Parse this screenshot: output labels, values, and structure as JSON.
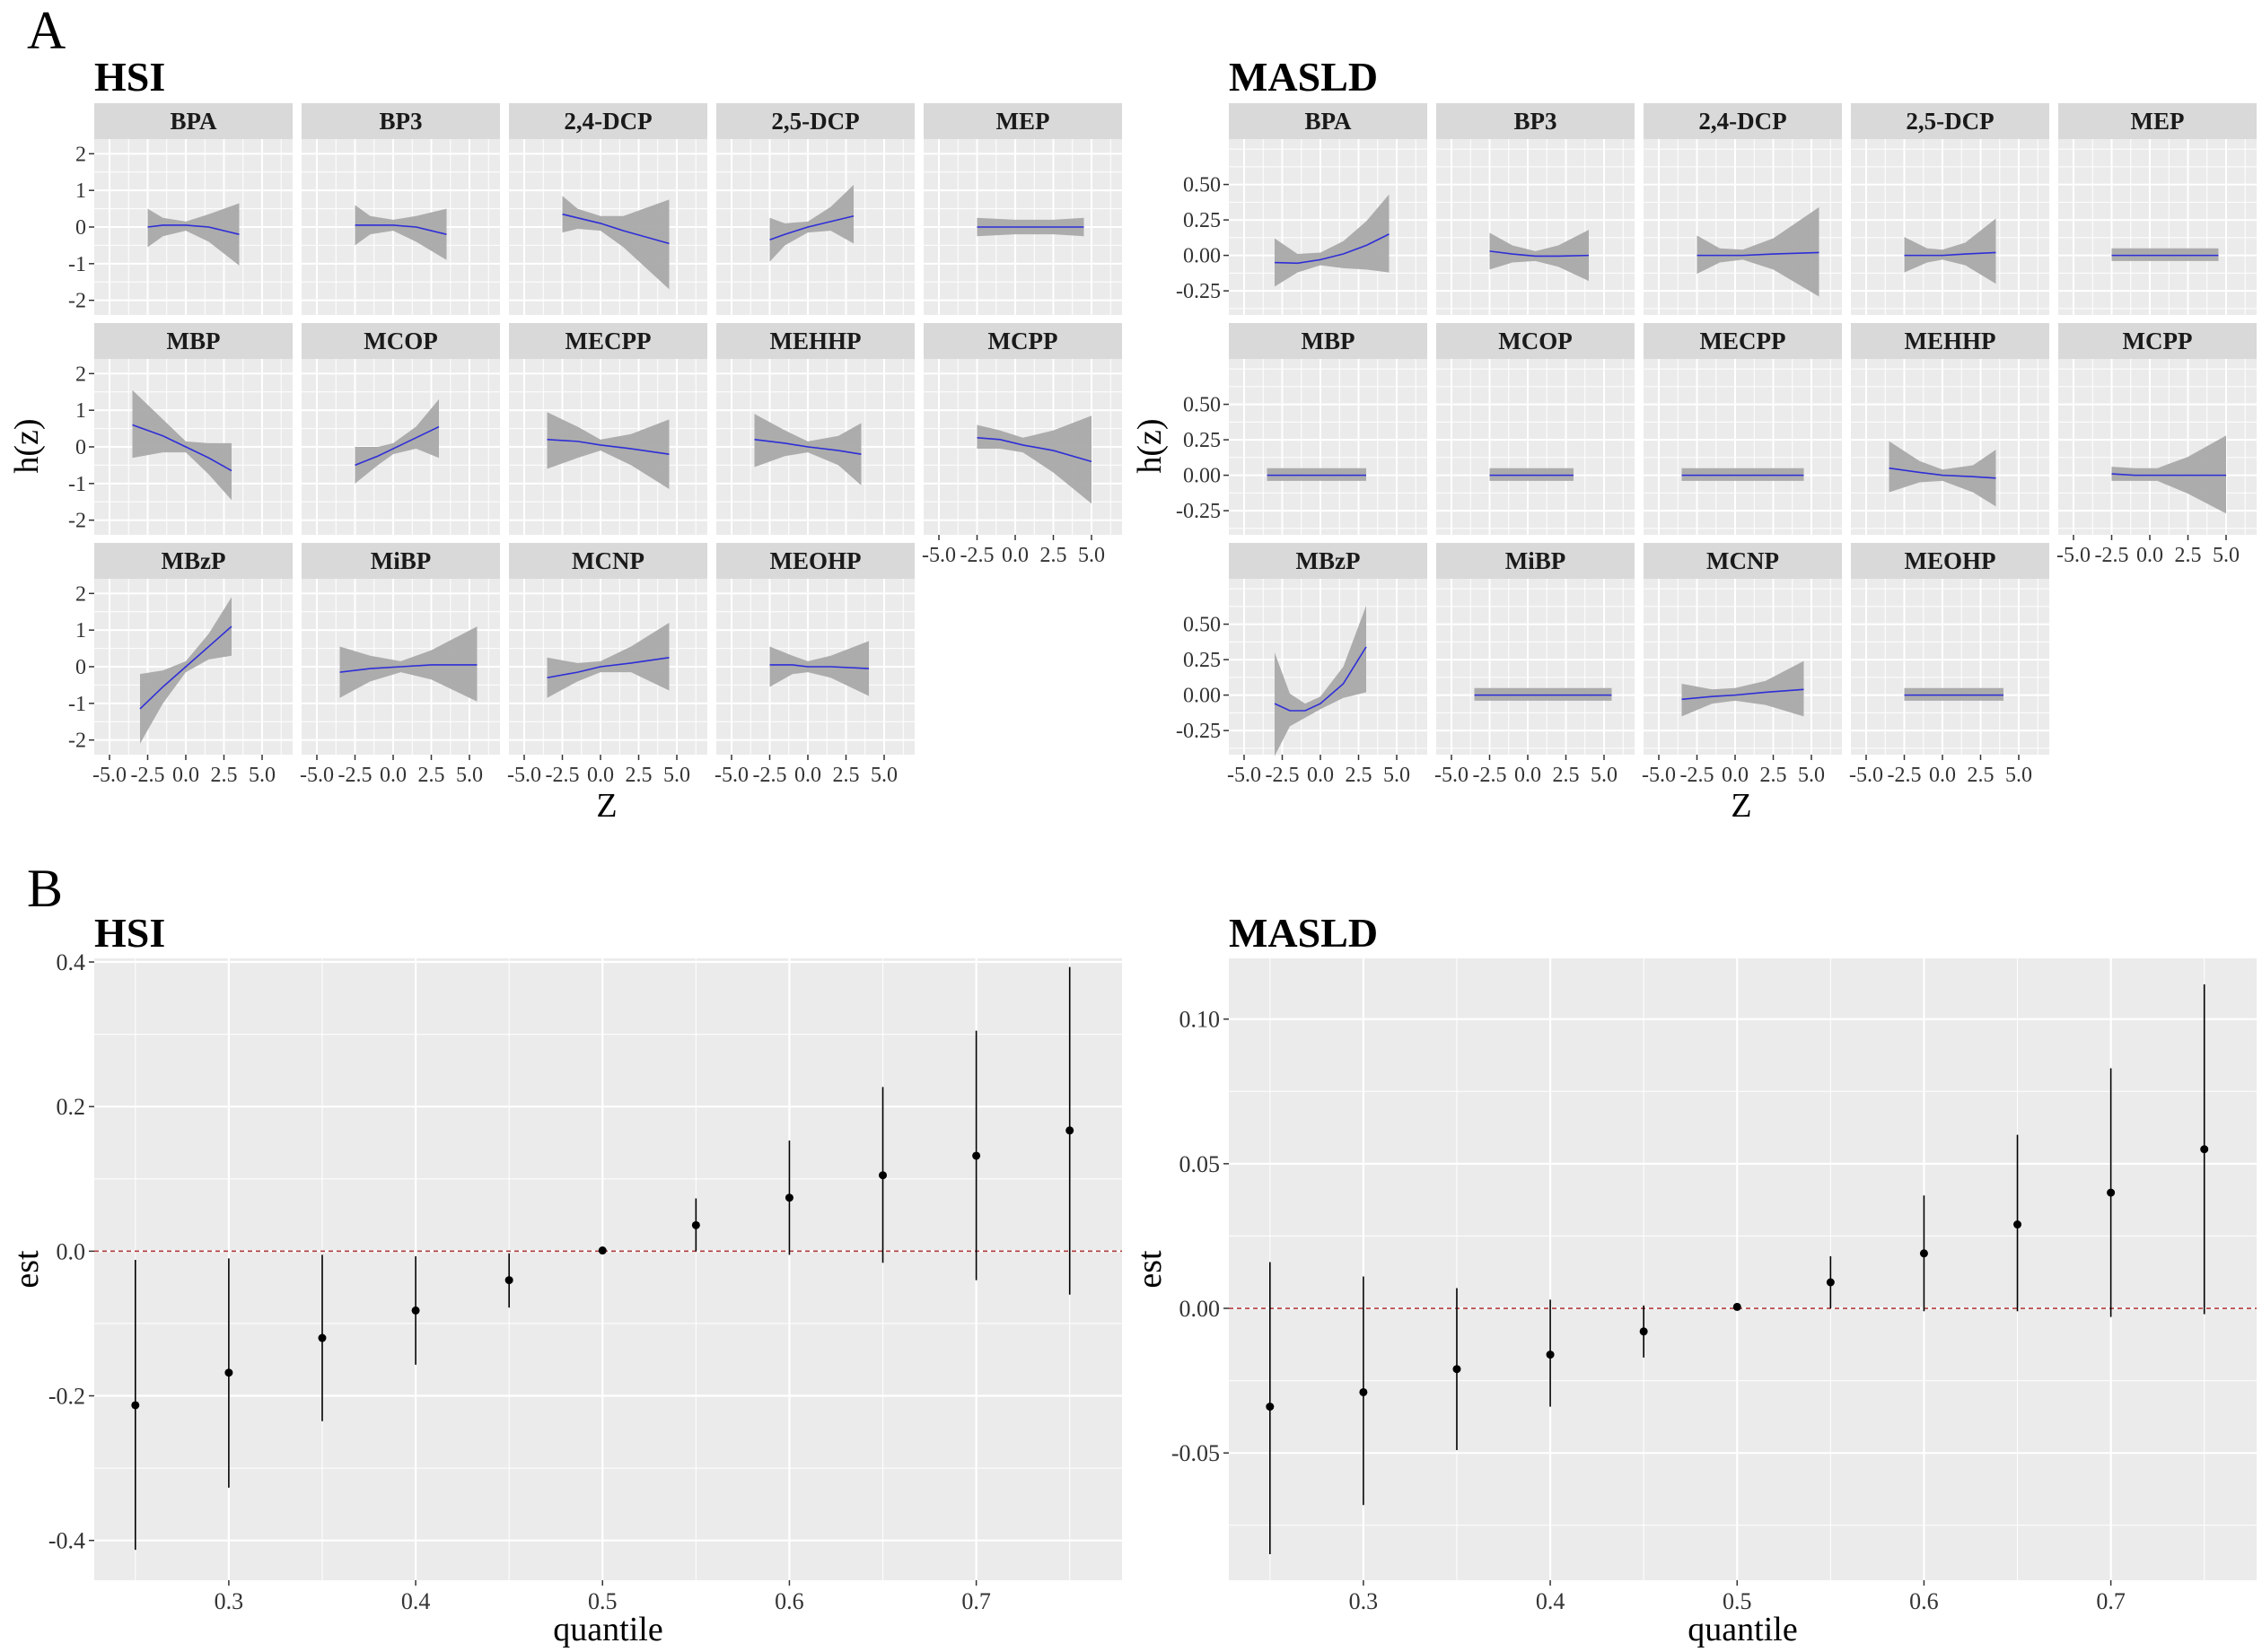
{
  "panel_labels": {
    "a": "A",
    "b": "B"
  },
  "chart_data": [
    {
      "id": "A-HSI",
      "type": "line",
      "title": "HSI",
      "xlabel": "Z",
      "ylabel": "h(z)",
      "xlim": [
        -6,
        7
      ],
      "ylim": [
        -2.4,
        2.4
      ],
      "xticks": [
        -5.0,
        -2.5,
        0.0,
        2.5,
        5.0
      ],
      "xtick_labels": [
        "-5.0",
        "-2.5",
        "0.0",
        "2.5",
        "5.0"
      ],
      "yticks": [
        -2,
        -1,
        0,
        1,
        2
      ],
      "ytick_labels": [
        "-2",
        "-1",
        "0",
        "1",
        "2"
      ],
      "line_color": "#2e2ed8",
      "band_color": "#a9a9a9",
      "facets": [
        {
          "name": "BPA",
          "x": [
            -2.5,
            -1.5,
            0.0,
            1.5,
            3.5
          ],
          "y": [
            0.0,
            0.05,
            0.05,
            0.0,
            -0.2
          ],
          "lower": [
            -0.55,
            -0.25,
            -0.1,
            -0.4,
            -1.05
          ],
          "upper": [
            0.5,
            0.25,
            0.15,
            0.35,
            0.65
          ]
        },
        {
          "name": "BP3",
          "x": [
            -2.5,
            -1.5,
            0.0,
            1.5,
            3.5
          ],
          "y": [
            0.05,
            0.05,
            0.05,
            0.0,
            -0.2
          ],
          "lower": [
            -0.5,
            -0.2,
            -0.1,
            -0.4,
            -0.9
          ],
          "upper": [
            0.6,
            0.3,
            0.2,
            0.3,
            0.5
          ]
        },
        {
          "name": "2,4-DCP",
          "x": [
            -2.5,
            -1.5,
            0.0,
            1.5,
            4.5
          ],
          "y": [
            0.35,
            0.25,
            0.1,
            -0.1,
            -0.45
          ],
          "lower": [
            -0.15,
            -0.05,
            -0.1,
            -0.55,
            -1.7
          ],
          "upper": [
            0.85,
            0.5,
            0.3,
            0.3,
            0.75
          ]
        },
        {
          "name": "2,5-DCP",
          "x": [
            -2.5,
            -1.5,
            0.0,
            1.5,
            3.0
          ],
          "y": [
            -0.35,
            -0.2,
            0.0,
            0.15,
            0.3
          ],
          "lower": [
            -0.95,
            -0.5,
            -0.15,
            -0.1,
            -0.45
          ],
          "upper": [
            0.25,
            0.1,
            0.15,
            0.55,
            1.15
          ]
        },
        {
          "name": "MEP",
          "x": [
            -2.5,
            0.0,
            2.5,
            4.5
          ],
          "y": [
            0.0,
            0.0,
            0.0,
            0.0
          ],
          "lower": [
            -0.25,
            -0.2,
            -0.2,
            -0.25
          ],
          "upper": [
            0.25,
            0.2,
            0.2,
            0.25
          ]
        },
        {
          "name": "MBP",
          "x": [
            -3.5,
            -1.5,
            0.0,
            1.5,
            3.0
          ],
          "y": [
            0.6,
            0.3,
            0.0,
            -0.3,
            -0.65
          ],
          "lower": [
            -0.3,
            -0.15,
            -0.15,
            -0.75,
            -1.45
          ],
          "upper": [
            1.55,
            0.75,
            0.15,
            0.1,
            0.1
          ]
        },
        {
          "name": "MCOP",
          "x": [
            -2.5,
            -1.0,
            0.0,
            1.5,
            3.0
          ],
          "y": [
            -0.5,
            -0.25,
            -0.05,
            0.25,
            0.55
          ],
          "lower": [
            -1.0,
            -0.5,
            -0.2,
            -0.05,
            -0.3
          ],
          "upper": [
            0.0,
            0.0,
            0.1,
            0.55,
            1.3
          ]
        },
        {
          "name": "MECPP",
          "x": [
            -3.5,
            -1.5,
            0.0,
            2.0,
            4.5
          ],
          "y": [
            0.2,
            0.15,
            0.05,
            -0.05,
            -0.2
          ],
          "lower": [
            -0.6,
            -0.3,
            -0.1,
            -0.5,
            -1.15
          ],
          "upper": [
            0.95,
            0.55,
            0.2,
            0.35,
            0.75
          ]
        },
        {
          "name": "MEHHP",
          "x": [
            -3.5,
            -1.5,
            0.0,
            2.0,
            3.5
          ],
          "y": [
            0.2,
            0.1,
            0.0,
            -0.1,
            -0.2
          ],
          "lower": [
            -0.55,
            -0.25,
            -0.15,
            -0.5,
            -1.05
          ],
          "upper": [
            0.9,
            0.45,
            0.15,
            0.3,
            0.65
          ]
        },
        {
          "name": "MCPP",
          "x": [
            -2.5,
            -1.0,
            0.5,
            2.5,
            5.0
          ],
          "y": [
            0.25,
            0.2,
            0.05,
            -0.1,
            -0.4
          ],
          "lower": [
            -0.05,
            -0.05,
            -0.15,
            -0.7,
            -1.55
          ],
          "upper": [
            0.6,
            0.45,
            0.25,
            0.45,
            0.85
          ]
        },
        {
          "name": "MBzP",
          "x": [
            -3.0,
            -1.5,
            0.0,
            1.5,
            3.0
          ],
          "y": [
            -1.15,
            -0.55,
            0.0,
            0.55,
            1.1
          ],
          "lower": [
            -2.1,
            -1.0,
            -0.15,
            0.2,
            0.3
          ],
          "upper": [
            -0.2,
            -0.1,
            0.15,
            0.9,
            1.9
          ]
        },
        {
          "name": "MiBP",
          "x": [
            -3.5,
            -1.5,
            0.5,
            2.5,
            5.5
          ],
          "y": [
            -0.15,
            -0.05,
            0.0,
            0.05,
            0.05
          ],
          "lower": [
            -0.85,
            -0.4,
            -0.15,
            -0.35,
            -0.95
          ],
          "upper": [
            0.55,
            0.3,
            0.15,
            0.45,
            1.1
          ]
        },
        {
          "name": "MCNP",
          "x": [
            -3.5,
            -1.5,
            0.0,
            2.0,
            4.5
          ],
          "y": [
            -0.3,
            -0.15,
            0.0,
            0.1,
            0.25
          ],
          "lower": [
            -0.85,
            -0.4,
            -0.15,
            -0.15,
            -0.65
          ],
          "upper": [
            0.25,
            0.1,
            0.15,
            0.55,
            1.2
          ]
        },
        {
          "name": "MEOHP",
          "x": [
            -2.5,
            -1.0,
            0.0,
            1.5,
            4.0
          ],
          "y": [
            0.05,
            0.05,
            0.0,
            0.0,
            -0.05
          ],
          "lower": [
            -0.55,
            -0.2,
            -0.15,
            -0.3,
            -0.8
          ],
          "upper": [
            0.55,
            0.3,
            0.15,
            0.3,
            0.7
          ]
        }
      ]
    },
    {
      "id": "A-MASLD",
      "type": "line",
      "title": "MASLD",
      "xlabel": "Z",
      "ylabel": "h(z)",
      "xlim": [
        -6,
        7
      ],
      "ylim": [
        -0.42,
        0.82
      ],
      "xticks": [
        -5.0,
        -2.5,
        0.0,
        2.5,
        5.0
      ],
      "xtick_labels": [
        "-5.0",
        "-2.5",
        "0.0",
        "2.5",
        "5.0"
      ],
      "yticks": [
        -0.25,
        0.0,
        0.25,
        0.5
      ],
      "ytick_labels": [
        "-0.25",
        "0.00",
        "0.25",
        "0.50"
      ],
      "line_color": "#2e2ed8",
      "band_color": "#a9a9a9",
      "facets": [
        {
          "name": "BPA",
          "x": [
            -3.0,
            -1.5,
            0.0,
            1.5,
            3.0,
            4.5
          ],
          "y": [
            -0.05,
            -0.055,
            -0.03,
            0.01,
            0.07,
            0.15
          ],
          "lower": [
            -0.22,
            -0.12,
            -0.07,
            -0.09,
            -0.1,
            -0.12
          ],
          "upper": [
            0.12,
            0.01,
            0.02,
            0.1,
            0.24,
            0.43
          ]
        },
        {
          "name": "BP3",
          "x": [
            -2.5,
            -1.0,
            0.5,
            2.0,
            4.0
          ],
          "y": [
            0.03,
            0.01,
            -0.005,
            -0.005,
            0.0
          ],
          "lower": [
            -0.1,
            -0.05,
            -0.04,
            -0.08,
            -0.18
          ],
          "upper": [
            0.16,
            0.07,
            0.03,
            0.07,
            0.18
          ]
        },
        {
          "name": "2,4-DCP",
          "x": [
            -2.5,
            -1.0,
            0.5,
            2.5,
            5.5
          ],
          "y": [
            0.0,
            0.0,
            0.0,
            0.01,
            0.02
          ],
          "lower": [
            -0.13,
            -0.05,
            -0.03,
            -0.1,
            -0.29
          ],
          "upper": [
            0.14,
            0.05,
            0.04,
            0.12,
            0.34
          ]
        },
        {
          "name": "2,5-DCP",
          "x": [
            -2.5,
            -1.0,
            0.0,
            1.5,
            3.5
          ],
          "y": [
            0.0,
            0.0,
            0.0,
            0.01,
            0.02
          ],
          "lower": [
            -0.12,
            -0.05,
            -0.03,
            -0.07,
            -0.2
          ],
          "upper": [
            0.13,
            0.05,
            0.04,
            0.09,
            0.26
          ]
        },
        {
          "name": "MEP",
          "x": [
            -2.5,
            0.0,
            2.5,
            4.5
          ],
          "y": [
            0.0,
            0.0,
            0.0,
            0.0
          ],
          "lower": [
            -0.04,
            -0.04,
            -0.04,
            -0.04
          ],
          "upper": [
            0.05,
            0.05,
            0.05,
            0.05
          ]
        },
        {
          "name": "MBP",
          "x": [
            -3.5,
            0.0,
            3.0
          ],
          "y": [
            0.0,
            0.0,
            0.0
          ],
          "lower": [
            -0.04,
            -0.04,
            -0.04
          ],
          "upper": [
            0.05,
            0.05,
            0.05
          ]
        },
        {
          "name": "MCOP",
          "x": [
            -2.5,
            0.0,
            3.0
          ],
          "y": [
            0.0,
            0.0,
            0.0
          ],
          "lower": [
            -0.04,
            -0.04,
            -0.04
          ],
          "upper": [
            0.05,
            0.05,
            0.05
          ]
        },
        {
          "name": "MECPP",
          "x": [
            -3.5,
            0.0,
            4.5
          ],
          "y": [
            0.0,
            0.0,
            0.0
          ],
          "lower": [
            -0.04,
            -0.04,
            -0.04
          ],
          "upper": [
            0.05,
            0.05,
            0.05
          ]
        },
        {
          "name": "MEHHP",
          "x": [
            -3.5,
            -1.5,
            0.0,
            2.0,
            3.5
          ],
          "y": [
            0.05,
            0.02,
            0.0,
            -0.01,
            -0.02
          ],
          "lower": [
            -0.12,
            -0.05,
            -0.04,
            -0.12,
            -0.22
          ],
          "upper": [
            0.24,
            0.1,
            0.04,
            0.07,
            0.18
          ]
        },
        {
          "name": "MCPP",
          "x": [
            -2.5,
            -1.0,
            0.5,
            2.5,
            5.0
          ],
          "y": [
            0.01,
            0.0,
            0.0,
            0.0,
            0.0
          ],
          "lower": [
            -0.04,
            -0.04,
            -0.04,
            -0.13,
            -0.27
          ],
          "upper": [
            0.06,
            0.05,
            0.05,
            0.13,
            0.28
          ]
        },
        {
          "name": "MBzP",
          "x": [
            -3.0,
            -2.0,
            -1.0,
            0.0,
            1.5,
            3.0
          ],
          "y": [
            -0.06,
            -0.11,
            -0.11,
            -0.06,
            0.08,
            0.34
          ],
          "lower": [
            -0.43,
            -0.22,
            -0.16,
            -0.1,
            -0.02,
            0.02
          ],
          "upper": [
            0.3,
            0.01,
            -0.06,
            -0.01,
            0.2,
            0.63
          ]
        },
        {
          "name": "MiBP",
          "x": [
            -3.5,
            0.0,
            5.5
          ],
          "y": [
            0.0,
            0.0,
            0.0
          ],
          "lower": [
            -0.04,
            -0.04,
            -0.04
          ],
          "upper": [
            0.05,
            0.05,
            0.05
          ]
        },
        {
          "name": "MCNP",
          "x": [
            -3.5,
            -1.5,
            0.0,
            2.0,
            4.5
          ],
          "y": [
            -0.03,
            -0.01,
            0.0,
            0.02,
            0.04
          ],
          "lower": [
            -0.15,
            -0.06,
            -0.04,
            -0.07,
            -0.15
          ],
          "upper": [
            0.08,
            0.04,
            0.05,
            0.1,
            0.24
          ]
        },
        {
          "name": "MEOHP",
          "x": [
            -2.5,
            0.0,
            4.0
          ],
          "y": [
            0.0,
            0.0,
            0.0
          ],
          "lower": [
            -0.04,
            -0.04,
            -0.04
          ],
          "upper": [
            0.05,
            0.05,
            0.05
          ]
        }
      ]
    },
    {
      "id": "B-HSI",
      "type": "scatter",
      "title": "HSI",
      "xlabel": "quantile",
      "ylabel": "est",
      "xlim": [
        0.228,
        0.778
      ],
      "ylim": [
        -0.455,
        0.405
      ],
      "xticks": [
        0.3,
        0.4,
        0.5,
        0.6,
        0.7
      ],
      "xtick_labels": [
        "0.3",
        "0.4",
        "0.5",
        "0.6",
        "0.7"
      ],
      "yticks": [
        -0.4,
        -0.2,
        0.0,
        0.2,
        0.4
      ],
      "ytick_labels": [
        "-0.4",
        "-0.2",
        "0.0",
        "0.2",
        "0.4"
      ],
      "reference_line": {
        "y": 0,
        "color": "#b03c3c",
        "style": "dashed"
      },
      "points": [
        {
          "x": 0.25,
          "est": -0.213,
          "lower": -0.413,
          "upper": -0.012
        },
        {
          "x": 0.3,
          "est": -0.168,
          "lower": -0.327,
          "upper": -0.01
        },
        {
          "x": 0.35,
          "est": -0.12,
          "lower": -0.235,
          "upper": -0.005
        },
        {
          "x": 0.4,
          "est": -0.082,
          "lower": -0.157,
          "upper": -0.007
        },
        {
          "x": 0.45,
          "est": -0.04,
          "lower": -0.078,
          "upper": -0.003
        },
        {
          "x": 0.5,
          "est": 0.001,
          "lower": 0.001,
          "upper": 0.001
        },
        {
          "x": 0.55,
          "est": 0.036,
          "lower": 0.0,
          "upper": 0.073
        },
        {
          "x": 0.6,
          "est": 0.074,
          "lower": -0.005,
          "upper": 0.153
        },
        {
          "x": 0.65,
          "est": 0.105,
          "lower": -0.016,
          "upper": 0.227
        },
        {
          "x": 0.7,
          "est": 0.132,
          "lower": -0.04,
          "upper": 0.305
        },
        {
          "x": 0.75,
          "est": 0.167,
          "lower": -0.06,
          "upper": 0.393
        }
      ]
    },
    {
      "id": "B-MASLD",
      "type": "scatter",
      "title": "MASLD",
      "xlabel": "quantile",
      "ylabel": "est",
      "xlim": [
        0.228,
        0.778
      ],
      "ylim": [
        -0.094,
        0.121
      ],
      "xticks": [
        0.3,
        0.4,
        0.5,
        0.6,
        0.7
      ],
      "xtick_labels": [
        "0.3",
        "0.4",
        "0.5",
        "0.6",
        "0.7"
      ],
      "yticks": [
        -0.05,
        0.0,
        0.05,
        0.1
      ],
      "ytick_labels": [
        "-0.05",
        "0.00",
        "0.05",
        "0.10"
      ],
      "reference_line": {
        "y": 0,
        "color": "#b03c3c",
        "style": "dashed"
      },
      "points": [
        {
          "x": 0.25,
          "est": -0.034,
          "lower": -0.085,
          "upper": 0.016
        },
        {
          "x": 0.3,
          "est": -0.029,
          "lower": -0.068,
          "upper": 0.011
        },
        {
          "x": 0.35,
          "est": -0.021,
          "lower": -0.049,
          "upper": 0.007
        },
        {
          "x": 0.4,
          "est": -0.016,
          "lower": -0.034,
          "upper": 0.003
        },
        {
          "x": 0.45,
          "est": -0.008,
          "lower": -0.017,
          "upper": 0.001
        },
        {
          "x": 0.5,
          "est": 0.0005,
          "lower": 0.0005,
          "upper": 0.0005
        },
        {
          "x": 0.55,
          "est": 0.009,
          "lower": 0.0,
          "upper": 0.018
        },
        {
          "x": 0.6,
          "est": 0.019,
          "lower": -0.001,
          "upper": 0.039
        },
        {
          "x": 0.65,
          "est": 0.029,
          "lower": -0.001,
          "upper": 0.06
        },
        {
          "x": 0.7,
          "est": 0.04,
          "lower": -0.003,
          "upper": 0.083
        },
        {
          "x": 0.75,
          "est": 0.055,
          "lower": -0.002,
          "upper": 0.112
        }
      ]
    }
  ]
}
